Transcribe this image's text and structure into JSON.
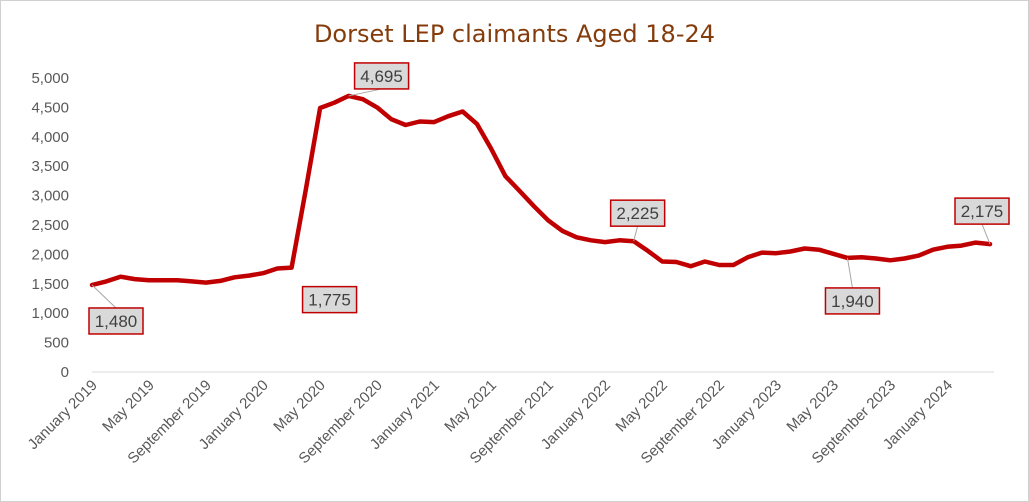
{
  "chart_data": {
    "type": "line",
    "title": "Dorset LEP claimants Aged 18-24",
    "xlabel": "",
    "ylabel": "",
    "ylim": [
      0,
      5000
    ],
    "yticks": [
      0,
      500,
      1000,
      1500,
      2000,
      2500,
      3000,
      3500,
      4000,
      4500,
      5000
    ],
    "ytick_labels": [
      "0",
      "500",
      "1,000",
      "1,500",
      "2,000",
      "2,500",
      "3,000",
      "3,500",
      "4,000",
      "4,500",
      "5,000"
    ],
    "x_tick_labels": [
      "January 2019",
      "May 2019",
      "September 2019",
      "January 2020",
      "May 2020",
      "September 2020",
      "January 2021",
      "May 2021",
      "September 2021",
      "January 2022",
      "May 2022",
      "September 2022",
      "January 2023",
      "May 2023",
      "September 2023",
      "January 2024"
    ],
    "x": [
      "2019-01",
      "2019-02",
      "2019-03",
      "2019-04",
      "2019-05",
      "2019-06",
      "2019-07",
      "2019-08",
      "2019-09",
      "2019-10",
      "2019-11",
      "2019-12",
      "2020-01",
      "2020-02",
      "2020-03",
      "2020-04",
      "2020-05",
      "2020-06",
      "2020-07",
      "2020-08",
      "2020-09",
      "2020-10",
      "2020-11",
      "2020-12",
      "2021-01",
      "2021-02",
      "2021-03",
      "2021-04",
      "2021-05",
      "2021-06",
      "2021-07",
      "2021-08",
      "2021-09",
      "2021-10",
      "2021-11",
      "2021-12",
      "2022-01",
      "2022-02",
      "2022-03",
      "2022-04",
      "2022-05",
      "2022-06",
      "2022-07",
      "2022-08",
      "2022-09",
      "2022-10",
      "2022-11",
      "2022-12",
      "2023-01",
      "2023-02",
      "2023-03",
      "2023-04",
      "2023-05",
      "2023-06",
      "2023-07",
      "2023-08",
      "2023-09",
      "2023-10",
      "2023-11",
      "2023-12",
      "2024-01",
      "2024-02",
      "2024-03",
      "2024-04"
    ],
    "series": [
      {
        "name": "",
        "color": "#c00000",
        "values": [
          1480,
          1540,
          1620,
          1580,
          1560,
          1560,
          1560,
          1540,
          1520,
          1550,
          1610,
          1640,
          1680,
          1760,
          1775,
          3100,
          4490,
          4580,
          4695,
          4640,
          4500,
          4300,
          4200,
          4260,
          4250,
          4350,
          4430,
          4220,
          3800,
          3330,
          3080,
          2820,
          2580,
          2400,
          2290,
          2240,
          2210,
          2240,
          2225,
          2060,
          1880,
          1870,
          1800,
          1880,
          1820,
          1820,
          1950,
          2030,
          2020,
          2050,
          2100,
          2080,
          2010,
          1940,
          1950,
          1930,
          1900,
          1930,
          1980,
          2080,
          2130,
          2150,
          2200,
          2175
        ]
      }
    ],
    "data_labels": [
      {
        "index": 0,
        "text": "1,480"
      },
      {
        "index": 14,
        "text": "1,775"
      },
      {
        "index": 18,
        "text": "4,695"
      },
      {
        "index": 38,
        "text": "2,225"
      },
      {
        "index": 53,
        "text": "1,940"
      },
      {
        "index": 63,
        "text": "2,175"
      }
    ],
    "grid": false,
    "legend": "none"
  }
}
